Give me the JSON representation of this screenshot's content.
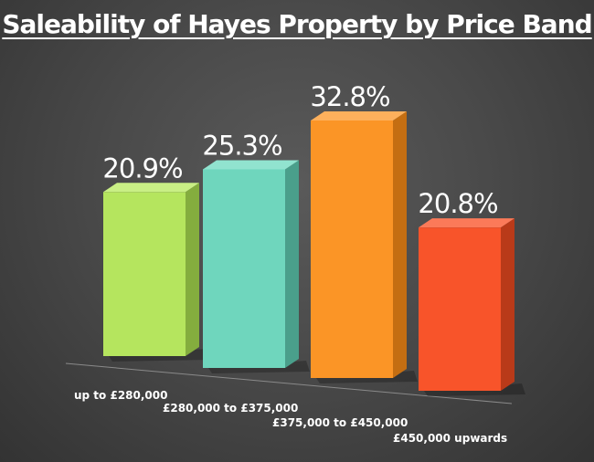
{
  "chart_data": {
    "type": "bar",
    "title": "Saleability of Hayes Property by Price Band",
    "categories": [
      "up to £280,000",
      "£280,000 to £375,000",
      "£375,000 to £450,000",
      "£450,000 upwards"
    ],
    "values": [
      20.9,
      25.3,
      32.8,
      20.8
    ],
    "value_labels": [
      "20.9%",
      "25.3%",
      "32.8%",
      "20.8%"
    ],
    "unit": "%",
    "colors": [
      {
        "front": "#b5e55e",
        "side": "#84ad3e",
        "top": "#c9ef85"
      },
      {
        "front": "#6fd6bd",
        "side": "#4a9f8b",
        "top": "#91e3cf"
      },
      {
        "front": "#fb9526",
        "side": "#c46e12",
        "top": "#fdb05c"
      },
      {
        "front": "#f8542a",
        "side": "#b93a19",
        "top": "#fb7a59"
      }
    ],
    "ylim": [
      0,
      40
    ],
    "grid": false,
    "legend": "none"
  }
}
